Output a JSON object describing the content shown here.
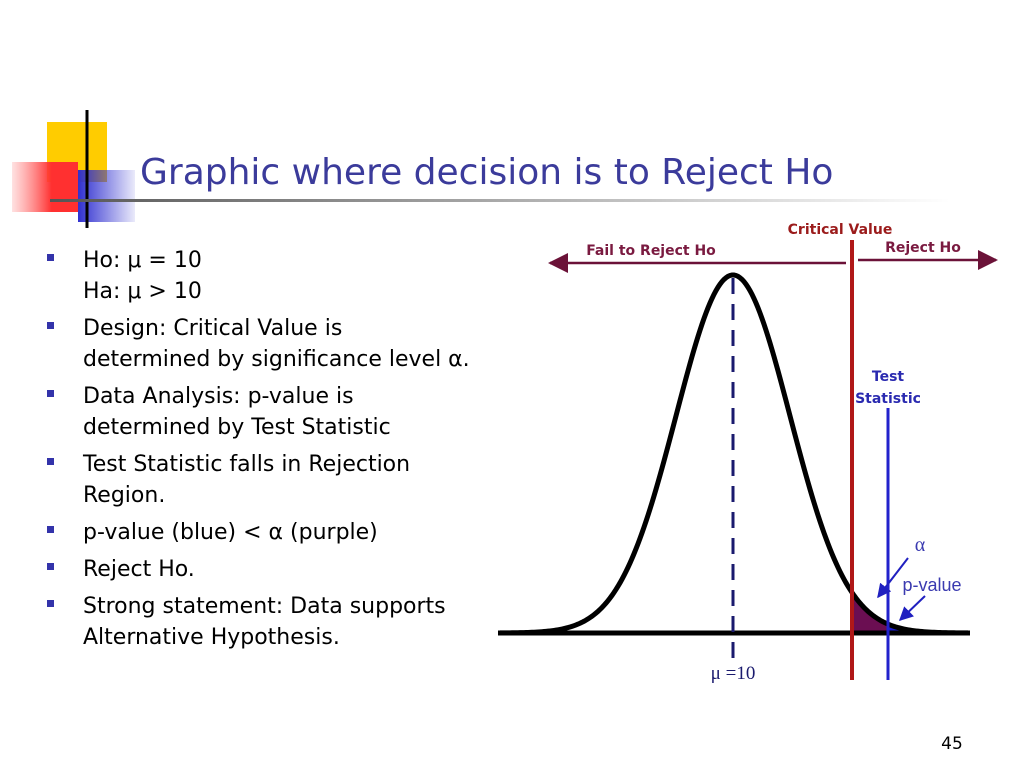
{
  "title": "Graphic where decision is to Reject Ho",
  "bullets": [
    {
      "lines": [
        "Ho: μ = 10",
        "Ha: μ > 10"
      ]
    },
    {
      "lines": [
        "Design: Critical Value is",
        "determined by significance level α."
      ]
    },
    {
      "lines": [
        "Data Analysis: p-value is",
        "determined by Test Statistic"
      ]
    },
    {
      "lines": [
        "Test Statistic falls in Rejection",
        "Region."
      ]
    },
    {
      "lines": [
        "p-value (blue) < α (purple)"
      ]
    },
    {
      "lines": [
        "Reject Ho."
      ]
    },
    {
      "lines": [
        "Strong statement: Data supports",
        "Alternative Hypothesis."
      ]
    }
  ],
  "diagram": {
    "critical_value": "Critical Value",
    "fail_to_reject": "Fail to Reject Ho",
    "reject": "Reject Ho",
    "test_statistic": [
      "Test",
      "Statistic"
    ],
    "alpha": "α",
    "p_value": "p-value",
    "mean": "μ =10"
  },
  "page_number": "45"
}
